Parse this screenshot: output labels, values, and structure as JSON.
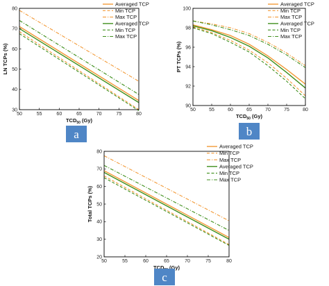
{
  "panels": {
    "a": {
      "badge": "a"
    },
    "b": {
      "badge": "b"
    },
    "c": {
      "badge": "c"
    }
  },
  "colors": {
    "orange": "#f39a37",
    "green": "#3f8f1c",
    "badge": "#4f86c6",
    "frame": "#000000"
  },
  "chart_data": [
    {
      "id": "a",
      "type": "line",
      "title": "",
      "xlabel_main": "TCD",
      "xlabel_sub": "50",
      "xlabel_rest": " (Gy)",
      "ylabel": "LN TCPs (%)",
      "xlim": [
        50,
        80
      ],
      "ylim": [
        30,
        80
      ],
      "xticks": [
        50,
        55,
        60,
        65,
        70,
        75,
        80
      ],
      "yticks": [
        30,
        40,
        50,
        60,
        70,
        80
      ],
      "legend": "top-right",
      "series": [
        {
          "name": "Averaged TCP",
          "color": "orange",
          "dash": "solid",
          "x": [
            50,
            80
          ],
          "y": [
            71,
            34.5
          ]
        },
        {
          "name": "Min TCP",
          "color": "orange",
          "dash": "dash",
          "x": [
            50,
            80
          ],
          "y": [
            68.5,
            30
          ]
        },
        {
          "name": "Max TCP",
          "color": "orange",
          "dash": "dashdot",
          "x": [
            50,
            80
          ],
          "y": [
            79,
            44
          ]
        },
        {
          "name": "Averaged TCP",
          "color": "green",
          "dash": "solid",
          "x": [
            50,
            80
          ],
          "y": [
            70,
            33.5
          ]
        },
        {
          "name": "Min TCP",
          "color": "green",
          "dash": "dash",
          "x": [
            50,
            80
          ],
          "y": [
            67.5,
            29.5
          ]
        },
        {
          "name": "Max TCP",
          "color": "green",
          "dash": "dashdot",
          "x": [
            50,
            80
          ],
          "y": [
            74,
            37.5
          ]
        }
      ]
    },
    {
      "id": "b",
      "type": "line",
      "title": "",
      "xlabel_main": "TCD",
      "xlabel_sub": "50",
      "xlabel_rest": " (Gy)",
      "ylabel": "PT TCPs (%)",
      "xlim": [
        50,
        80
      ],
      "ylim": [
        90,
        100
      ],
      "xticks": [
        50,
        55,
        60,
        65,
        70,
        75,
        80
      ],
      "yticks": [
        90,
        92,
        94,
        96,
        98,
        100
      ],
      "legend": "top-right",
      "series": [
        {
          "name": "Averaged TCP",
          "color": "orange",
          "dash": "solid",
          "x": [
            50,
            55,
            60,
            65,
            70,
            75,
            80
          ],
          "y": [
            98.3,
            97.8,
            97.2,
            96.3,
            95.1,
            93.7,
            92.2
          ]
        },
        {
          "name": "Min TCP",
          "color": "orange",
          "dash": "dash",
          "x": [
            50,
            55,
            60,
            65,
            70,
            75,
            80
          ],
          "y": [
            98.1,
            97.5,
            96.7,
            95.7,
            94.4,
            92.8,
            91.0
          ]
        },
        {
          "name": "Max TCP",
          "color": "orange",
          "dash": "dashdot",
          "x": [
            50,
            55,
            60,
            65,
            70,
            75,
            80
          ],
          "y": [
            98.7,
            98.4,
            98.0,
            97.4,
            96.5,
            95.4,
            94.1
          ]
        },
        {
          "name": "Averaged TCP",
          "color": "green",
          "dash": "solid",
          "x": [
            50,
            55,
            60,
            65,
            70,
            75,
            80
          ],
          "y": [
            98.2,
            97.7,
            97.0,
            96.1,
            94.9,
            93.4,
            91.8
          ]
        },
        {
          "name": "Min TCP",
          "color": "green",
          "dash": "dash",
          "x": [
            50,
            55,
            60,
            65,
            70,
            75,
            80
          ],
          "y": [
            98.0,
            97.4,
            96.5,
            95.5,
            94.1,
            92.5,
            90.7
          ]
        },
        {
          "name": "Max TCP",
          "color": "green",
          "dash": "dashdot",
          "x": [
            50,
            55,
            60,
            65,
            70,
            75,
            80
          ],
          "y": [
            98.7,
            98.3,
            97.8,
            97.2,
            96.3,
            95.2,
            93.9
          ]
        }
      ]
    },
    {
      "id": "c",
      "type": "line",
      "title": "",
      "xlabel_main": "TCD",
      "xlabel_sub": "50",
      "xlabel_rest": " (Gy)",
      "ylabel": "Total TCPs (%)",
      "xlim": [
        50,
        80
      ],
      "ylim": [
        20,
        80
      ],
      "xticks": [
        50,
        55,
        60,
        65,
        70,
        75,
        80
      ],
      "yticks": [
        20,
        30,
        40,
        50,
        60,
        70,
        80
      ],
      "legend": "top-right",
      "series": [
        {
          "name": "Averaged TCP",
          "color": "orange",
          "dash": "solid",
          "x": [
            50,
            80
          ],
          "y": [
            69,
            31
          ]
        },
        {
          "name": "Min TCP",
          "color": "orange",
          "dash": "dash",
          "x": [
            50,
            80
          ],
          "y": [
            66,
            27
          ]
        },
        {
          "name": "Max TCP",
          "color": "orange",
          "dash": "dashdot",
          "x": [
            50,
            80
          ],
          "y": [
            77.5,
            40.5
          ]
        },
        {
          "name": "Averaged TCP",
          "color": "green",
          "dash": "solid",
          "x": [
            50,
            80
          ],
          "y": [
            68,
            30
          ]
        },
        {
          "name": "Min TCP",
          "color": "green",
          "dash": "dash",
          "x": [
            50,
            80
          ],
          "y": [
            65,
            26.5
          ]
        },
        {
          "name": "Max TCP",
          "color": "green",
          "dash": "dashdot",
          "x": [
            50,
            80
          ],
          "y": [
            72,
            35
          ]
        }
      ]
    }
  ]
}
